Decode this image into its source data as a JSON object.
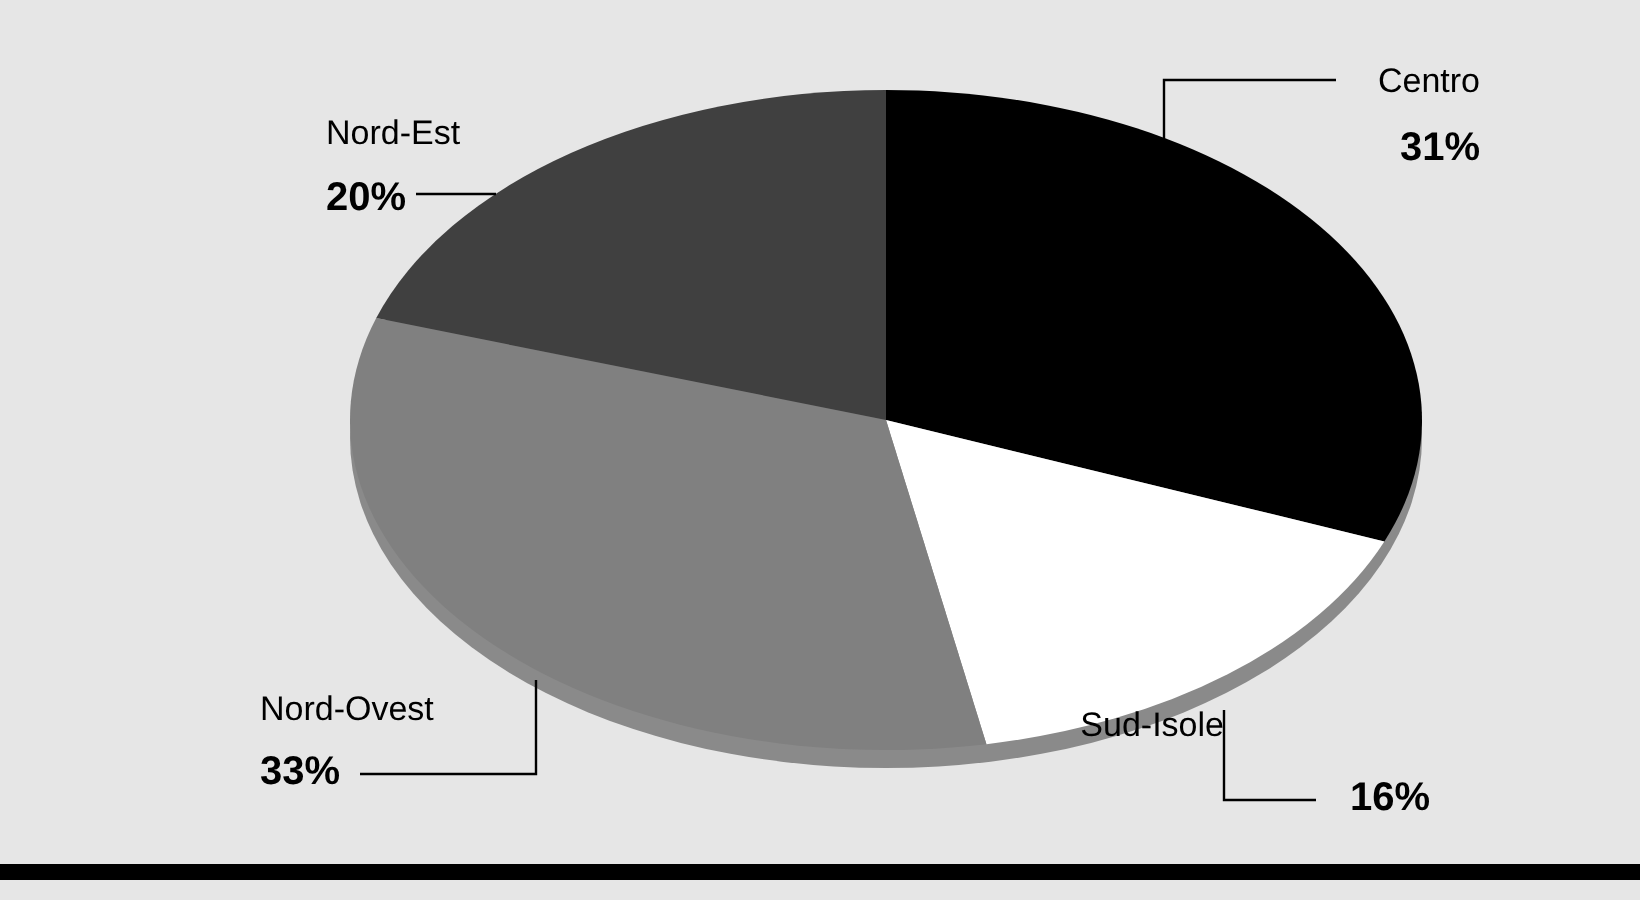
{
  "chart_data": {
    "type": "pie",
    "categories": [
      "Centro",
      "Sud-Isole",
      "Nord-Ovest",
      "Nord-Est"
    ],
    "values": [
      31,
      16,
      33,
      20
    ],
    "colors": [
      "#000000",
      "#ffffff",
      "#808080",
      "#404040"
    ],
    "value_labels": [
      "31%",
      "16%",
      "33%",
      "20%"
    ]
  }
}
